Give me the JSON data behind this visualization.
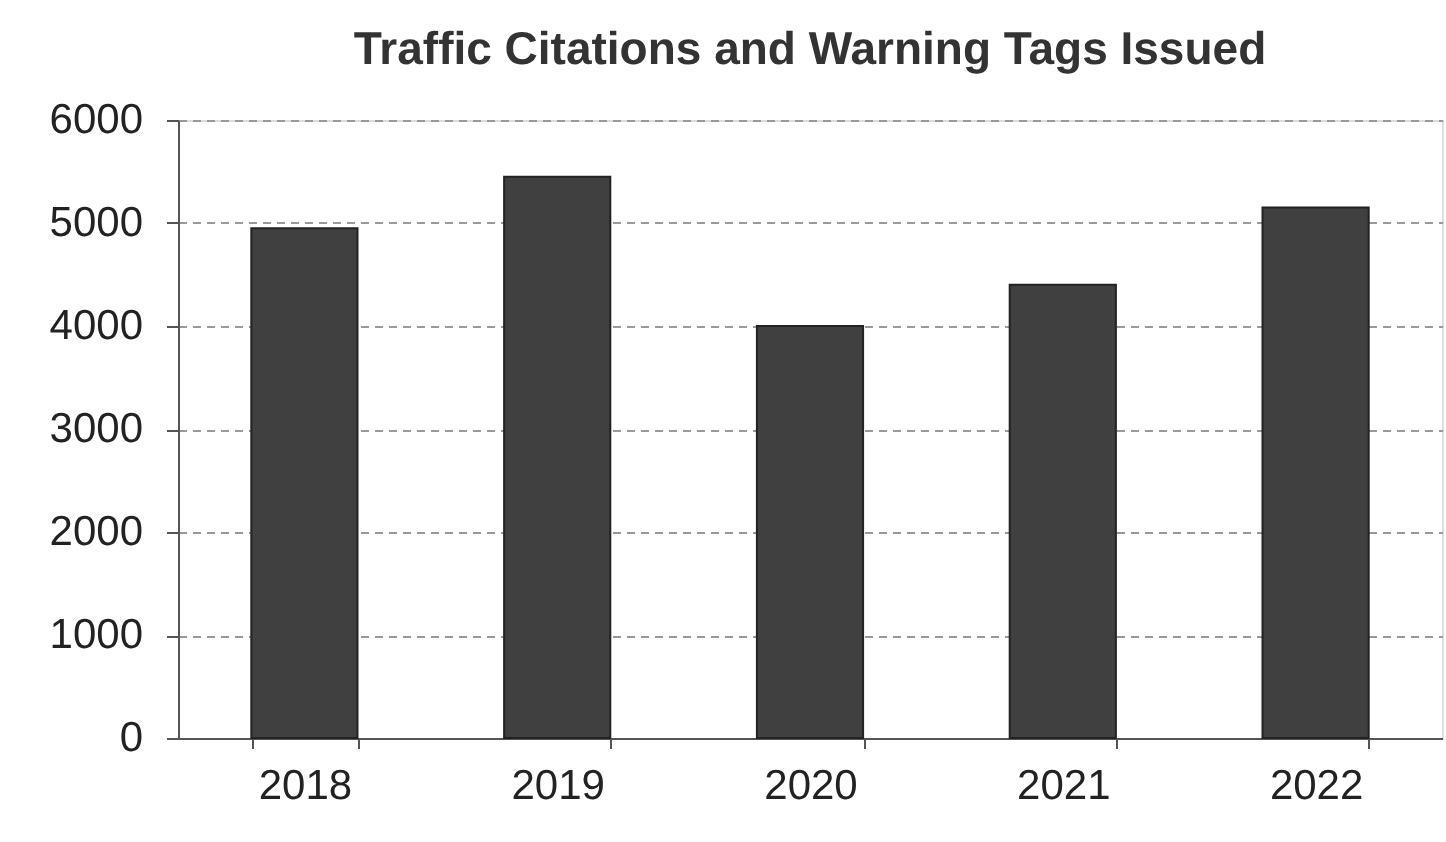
{
  "chart_data": {
    "type": "bar",
    "title": "Traffic Citations and Warning Tags Issued",
    "categories": [
      "2018",
      "2019",
      "2020",
      "2021",
      "2022"
    ],
    "values": [
      4950,
      5450,
      4000,
      4400,
      5150
    ],
    "color": "#404040",
    "ylim": [
      0,
      6000
    ],
    "yticks": [
      0,
      1000,
      2000,
      3000,
      4000,
      5000,
      6000
    ],
    "grid": "y"
  }
}
